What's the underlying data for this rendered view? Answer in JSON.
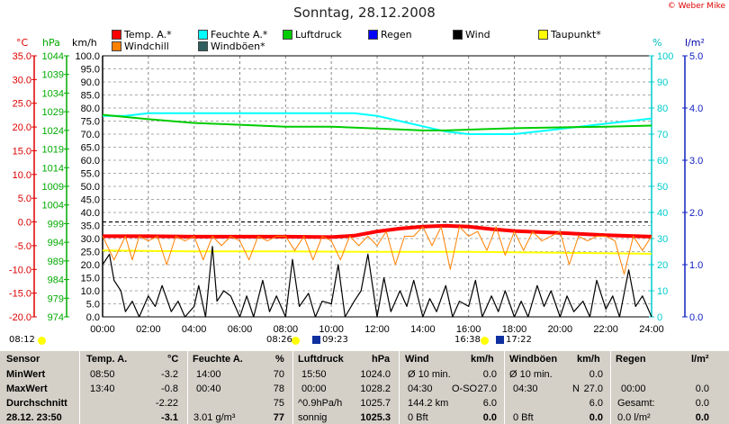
{
  "title": "Sonntag, 28.12.2008",
  "copyright": "© Weber Mike",
  "units": {
    "temp": "°C",
    "hpa": "hPa",
    "kmh": "km/h",
    "pct": "%",
    "rain": "l/m²"
  },
  "legend": [
    {
      "label": "Temp. A.*",
      "color": "#ff0000"
    },
    {
      "label": "Feuchte A.*",
      "color": "#00ffff"
    },
    {
      "label": "Luftdruck",
      "color": "#00cc00"
    },
    {
      "label": "Regen",
      "color": "#0000ff"
    },
    {
      "label": "Wind",
      "color": "#000000"
    },
    {
      "label": "Taupunkt*",
      "color": "#ffff00"
    },
    {
      "label": "Windchill",
      "color": "#ff8000"
    },
    {
      "label": "Windböen*",
      "color": "#306060"
    }
  ],
  "sun": {
    "rise": "08:12",
    "set": "16:38"
  },
  "moon": {
    "rise": "09:23",
    "set": "17:22",
    "dawn": "08:26"
  },
  "chart_data": {
    "type": "line",
    "x_ticks": [
      "00:00",
      "02:00",
      "04:00",
      "06:00",
      "08:00",
      "10:00",
      "12:00",
      "14:00",
      "16:00",
      "18:00",
      "20:00",
      "22:00",
      "24:00"
    ],
    "axes": {
      "temp_C": {
        "ticks": [
          "35.0",
          "30.0",
          "25.0",
          "20.0",
          "15.0",
          "10.0",
          "5.0",
          "0.0",
          "-5.0",
          "-10.0",
          "-15.0",
          "-20.0"
        ],
        "ylim": [
          -20,
          35
        ]
      },
      "pressure_hPa": {
        "ticks": [
          "1044",
          "1039",
          "1034",
          "1029",
          "1024",
          "1019",
          "1014",
          "1009",
          "1004",
          "999",
          "994",
          "989",
          "984",
          "979",
          "974"
        ],
        "ylim": [
          974,
          1044
        ]
      },
      "wind_kmh": {
        "ticks": [
          "100.0",
          "95.0",
          "90.0",
          "85.0",
          "80.0",
          "75.0",
          "70.0",
          "65.0",
          "60.0",
          "55.0",
          "50.0",
          "45.0",
          "40.0",
          "35.0",
          "30.0",
          "25.0",
          "20.0",
          "15.0",
          "10.0",
          "5.0",
          "0.0"
        ],
        "ylim": [
          0,
          100
        ]
      },
      "humidity_pct": {
        "ticks": [
          "100",
          "90",
          "80",
          "70",
          "60",
          "50",
          "40",
          "30",
          "20",
          "10",
          "0"
        ],
        "ylim": [
          0,
          100
        ]
      },
      "rain_lm2": {
        "ticks": [
          "5.0",
          "4.0",
          "3.0",
          "2.0",
          "1.0",
          "0.0"
        ],
        "ylim": [
          0,
          5
        ]
      }
    },
    "zero_line_C": 0,
    "series": [
      {
        "name": "Temp. A.*",
        "axis": "temp_C",
        "color": "#ff0000",
        "x": [
          0,
          2,
          4,
          6,
          8,
          10,
          11,
          12,
          13,
          14,
          15,
          16,
          17,
          18,
          20,
          22,
          24
        ],
        "values": [
          -3.0,
          -3.0,
          -3.1,
          -3.1,
          -3.1,
          -3.2,
          -2.9,
          -2.0,
          -1.4,
          -1.0,
          -0.8,
          -1.0,
          -1.5,
          -1.9,
          -2.3,
          -2.8,
          -3.1
        ]
      },
      {
        "name": "Feuchte A.*",
        "axis": "humidity_pct",
        "color": "#00ffff",
        "x": [
          0,
          1,
          2,
          4,
          6,
          8,
          10,
          11,
          12,
          13,
          14,
          15,
          16,
          18,
          20,
          22,
          24
        ],
        "values": [
          77,
          77,
          78,
          78,
          78,
          78,
          78,
          78,
          77,
          75,
          73,
          71,
          70,
          70,
          72,
          74,
          76
        ]
      },
      {
        "name": "Luftdruck",
        "axis": "pressure_hPa",
        "color": "#00cc00",
        "x": [
          0,
          2,
          4,
          6,
          8,
          10,
          12,
          14,
          15,
          16,
          18,
          20,
          22,
          24
        ],
        "values": [
          1028.2,
          1027.0,
          1026.0,
          1025.5,
          1025.0,
          1025.0,
          1024.5,
          1024.0,
          1024.0,
          1024.2,
          1024.6,
          1024.8,
          1025.0,
          1025.3
        ]
      },
      {
        "name": "Taupunkt*",
        "axis": "temp_C",
        "color": "#ffff00",
        "x": [
          0,
          4,
          8,
          12,
          16,
          20,
          24
        ],
        "values": [
          -6.0,
          -6.2,
          -6.2,
          -6.3,
          -6.3,
          -6.5,
          -6.7
        ]
      },
      {
        "name": "Windchill",
        "axis": "temp_C",
        "color": "#ff8000",
        "x": [
          0,
          0.5,
          1,
          1.3,
          1.6,
          2,
          2.4,
          2.8,
          3.2,
          3.6,
          4,
          4.4,
          4.8,
          5.2,
          5.6,
          6,
          6.4,
          6.8,
          7.2,
          7.6,
          8,
          8.4,
          8.8,
          9.2,
          9.6,
          10,
          10.4,
          10.8,
          11.2,
          11.6,
          12,
          12.4,
          12.8,
          13.2,
          13.6,
          14,
          14.4,
          14.8,
          15.2,
          15.6,
          16,
          16.4,
          16.8,
          17.2,
          17.6,
          18,
          18.4,
          18.8,
          19.2,
          19.6,
          20,
          20.4,
          20.8,
          21.2,
          21.6,
          22,
          22.4,
          22.8,
          23.2,
          23.6,
          24
        ],
        "values": [
          -3,
          -8,
          -3,
          -8,
          -3,
          -4,
          -3,
          -9,
          -3,
          -4,
          -3,
          -8,
          -3,
          -5,
          -3,
          -4,
          -8,
          -3,
          -4,
          -3,
          -3,
          -6,
          -3,
          -8,
          -3,
          -4,
          -8,
          -3,
          -5,
          -3,
          -5,
          -2,
          -9,
          -3,
          -3,
          -1,
          -5,
          -1,
          -10,
          -1,
          -3,
          -2,
          -6,
          -1,
          -7,
          -2,
          -6,
          -2,
          -4,
          -3,
          -2,
          -9,
          -3,
          -4,
          -3,
          -3,
          -4,
          -11,
          -3,
          -6,
          -3
        ]
      },
      {
        "name": "Wind",
        "axis": "wind_kmh",
        "color": "#000000",
        "x": [
          0,
          0.3,
          0.5,
          0.8,
          1,
          1.3,
          1.6,
          2,
          2.3,
          2.6,
          3,
          3.3,
          3.6,
          4,
          4.2,
          4.5,
          4.8,
          5,
          5.3,
          5.6,
          6,
          6.3,
          6.6,
          7,
          7.3,
          7.6,
          8,
          8.3,
          8.6,
          9,
          9.3,
          9.6,
          10,
          10.3,
          10.6,
          11,
          11.3,
          11.6,
          12,
          12.3,
          12.6,
          13,
          13.3,
          13.6,
          14,
          14.3,
          14.6,
          15,
          15.3,
          15.6,
          16,
          16.3,
          16.6,
          17,
          17.3,
          17.6,
          18,
          18.3,
          18.6,
          19,
          19.3,
          19.6,
          20,
          20.3,
          20.6,
          21,
          21.3,
          21.6,
          22,
          22.3,
          22.6,
          23,
          23.3,
          23.6,
          24
        ],
        "values": [
          20,
          24,
          14,
          10,
          2,
          6,
          0,
          8,
          4,
          12,
          2,
          6,
          0,
          4,
          12,
          0,
          27,
          6,
          10,
          8,
          0,
          8,
          0,
          14,
          2,
          8,
          0,
          22,
          4,
          9,
          0,
          6,
          5,
          20,
          0,
          6,
          10,
          24,
          0,
          15,
          2,
          10,
          4,
          14,
          0,
          7,
          2,
          12,
          0,
          6,
          4,
          14,
          0,
          8,
          2,
          10,
          0,
          6,
          0,
          12,
          4,
          10,
          0,
          8,
          2,
          6,
          0,
          14,
          3,
          8,
          0,
          18,
          4,
          8,
          0
        ]
      }
    ]
  },
  "stats": {
    "headers": {
      "sensor": "Sensor",
      "temp": "Temp. A.",
      "temp_unit": "°C",
      "hum": "Feuchte A.",
      "hum_unit": "%",
      "press": "Luftdruck",
      "press_unit": "hPa",
      "wind": "Wind",
      "wind_unit": "km/h",
      "gust": "Windböen",
      "gust_unit": "km/h",
      "rain": "Regen",
      "rain_unit": "l/m²"
    },
    "labels": {
      "min": "MinWert",
      "max": "MaxWert",
      "avg": "Durchschnitt",
      "now": "28.12. 23:50"
    },
    "temp": {
      "min_time": "08:50",
      "min": "-3.2",
      "max_time": "13:40",
      "max": "-0.8",
      "avg": "-2.22",
      "now": "-3.1"
    },
    "hum": {
      "min_time": "14:00",
      "min": "70",
      "max_time": "00:40",
      "max": "78",
      "avg": "75",
      "abs": "3.01 g/m³",
      "now": "77"
    },
    "press": {
      "min_time": "15:50",
      "min": "1024.0",
      "max_time": "00:00",
      "max": "1028.2",
      "trend": "^0.9hPa/h",
      "avg": "1025.7",
      "state": "sonnig",
      "now": "1025.3"
    },
    "wind": {
      "r1a": "Ø 10 min.",
      "r1b": "0.0",
      "r2a": "04:30",
      "r2m": "O-SO",
      "r2b": "27.0",
      "r3a": "144.2 km",
      "r3b": "6.0",
      "r4a": "0 Bft",
      "r4b": "0.0"
    },
    "gust": {
      "r1a": "Ø 10 min.",
      "r1b": "0.0",
      "r2a": "04:30",
      "r2m": "N",
      "r2b": "27.0",
      "r3b": "6.0",
      "r4a": "0 Bft",
      "r4b": "0.0"
    },
    "rain": {
      "r2a": "00:00",
      "r2b": "0.0",
      "r3a": "Gesamt:",
      "r3b": "0.0",
      "r4a": "0.0 l/m²",
      "r4b": "0.0"
    }
  }
}
